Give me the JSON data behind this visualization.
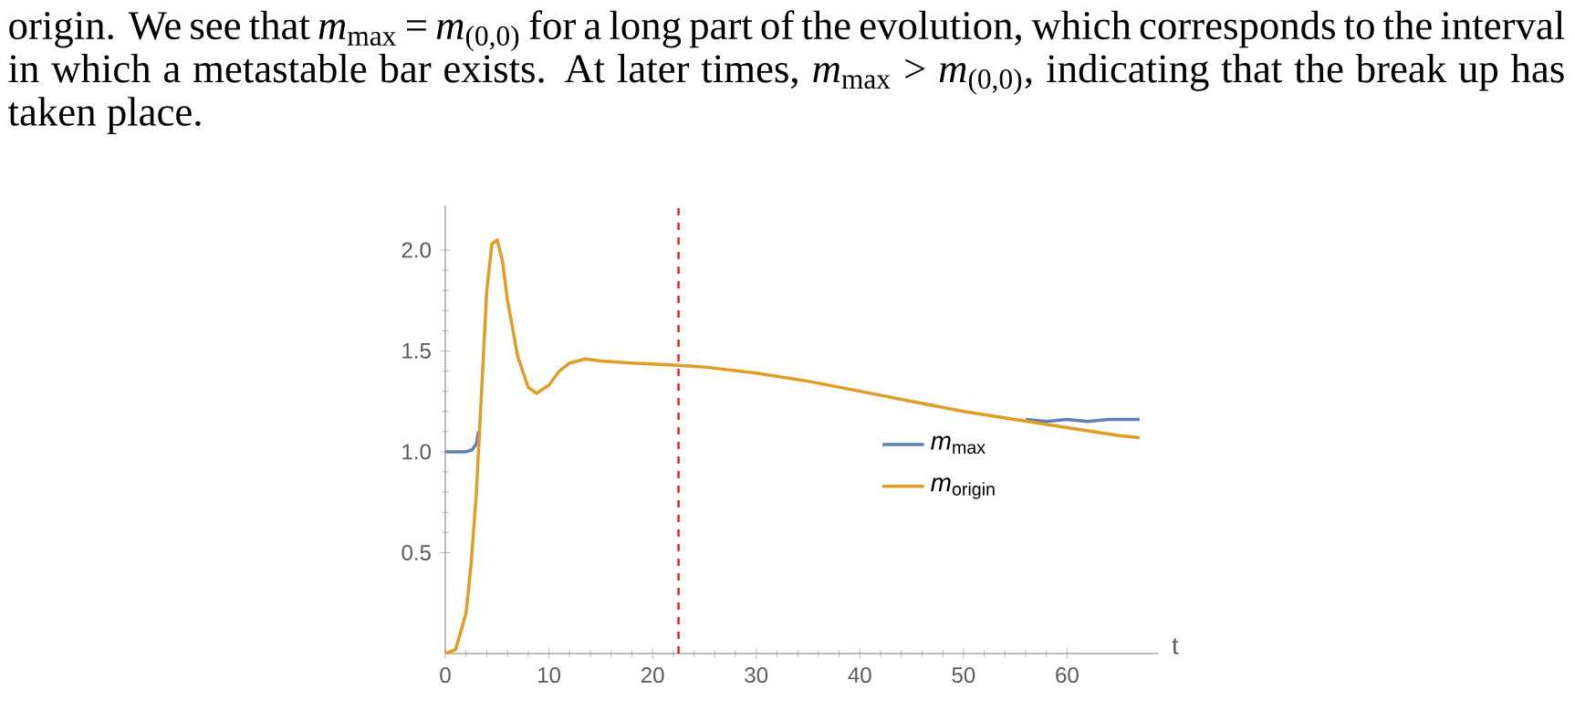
{
  "chart_data": {
    "type": "line",
    "annotations": [
      "origin. We see that *m*$_{max}$ = *m*$_{(0,0)}$ for a long part of the evolution, which corresponds to the interval in which a metastable bar exists. At later times, *m*$_{max}$ > *m*$_{(0,0)}$, indicating that the break up has taken place."
    ],
    "xlabel": "t",
    "xlim": [
      0,
      68.8
    ],
    "ylim": [
      0,
      2.22
    ],
    "xticks": [
      0,
      10,
      20,
      30,
      40,
      50,
      60
    ],
    "yticks": [
      {
        "value": 0.5,
        "label": "0.5"
      },
      {
        "value": 1,
        "label": "1.0"
      },
      {
        "value": 1.5,
        "label": "1.5"
      },
      {
        "value": 2,
        "label": "2.0"
      }
    ],
    "legend": "right",
    "grid": false,
    "marker": "none",
    "line_style": "solid",
    "ref_lines": [
      {
        "axis": "x",
        "value": 22.5,
        "color": "#e41a1c",
        "line_style": "dashed"
      }
    ],
    "series": [
      {
        "name": "*m*$_{max}$",
        "color": "#5e81b5",
        "x": [
          0,
          1,
          2,
          2.6,
          3,
          3.2,
          3.5,
          55,
          56,
          58,
          60,
          62,
          64,
          66,
          67
        ],
        "values": [
          1.0,
          1.0,
          1.0,
          1.01,
          1.04,
          1.1,
          null,
          null,
          1.16,
          1.15,
          1.16,
          1.15,
          1.16,
          1.16,
          1.16
        ]
      },
      {
        "name": "*m*$_{origin}$",
        "color": "#e19c24",
        "x": [
          0,
          1,
          2,
          2.5,
          3,
          3.5,
          4,
          4.5,
          5,
          5.5,
          6,
          7,
          8,
          8.8,
          10,
          11,
          12,
          13.5,
          15,
          18,
          22,
          25,
          30,
          35,
          40,
          45,
          50,
          55,
          60,
          65,
          67
        ],
        "values": [
          0,
          0.02,
          0.2,
          0.45,
          0.8,
          1.3,
          1.8,
          2.03,
          2.05,
          1.95,
          1.75,
          1.47,
          1.32,
          1.29,
          1.33,
          1.4,
          1.44,
          1.46,
          1.45,
          1.44,
          1.43,
          1.42,
          1.39,
          1.35,
          1.3,
          1.25,
          1.2,
          1.16,
          1.12,
          1.08,
          1.07
        ]
      }
    ]
  }
}
